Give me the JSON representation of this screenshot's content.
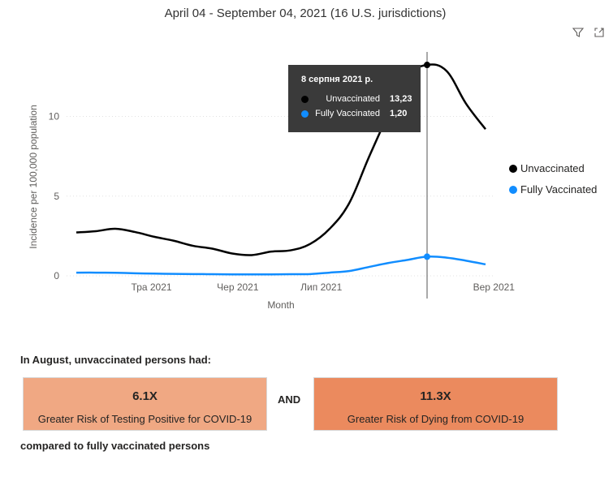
{
  "title": "April 04 - September 04, 2021 (16 U.S. jurisdictions)",
  "toolbar": {
    "filter_icon": "filter-icon",
    "focus_icon": "focus-mode-icon"
  },
  "chart_data": {
    "type": "line",
    "xlabel": "Month",
    "ylabel": "Incidence per 100,000 population",
    "ylim": [
      0,
      14
    ],
    "yticks": [
      0,
      5,
      10
    ],
    "xtick_labels": [
      "Тра 2021",
      "Чер 2021",
      "Лип 2021",
      "Вер 2021"
    ],
    "x": [
      "2021-04-04",
      "2021-04-11",
      "2021-04-18",
      "2021-04-25",
      "2021-05-02",
      "2021-05-09",
      "2021-05-16",
      "2021-05-23",
      "2021-05-30",
      "2021-06-06",
      "2021-06-13",
      "2021-06-20",
      "2021-06-27",
      "2021-07-04",
      "2021-07-11",
      "2021-07-18",
      "2021-07-25",
      "2021-08-01",
      "2021-08-08",
      "2021-08-15",
      "2021-08-22",
      "2021-08-29"
    ],
    "series": [
      {
        "name": "Unvaccinated",
        "color": "#000000",
        "values": [
          2.72,
          2.8,
          2.95,
          2.75,
          2.45,
          2.2,
          1.88,
          1.7,
          1.4,
          1.3,
          1.52,
          1.6,
          2.0,
          2.95,
          4.55,
          7.4,
          10.1,
          12.5,
          13.23,
          12.85,
          10.8,
          9.2
        ]
      },
      {
        "name": "Fully Vaccinated",
        "color": "#118DFF",
        "values": [
          0.2,
          0.2,
          0.19,
          0.16,
          0.14,
          0.12,
          0.11,
          0.1,
          0.09,
          0.09,
          0.09,
          0.1,
          0.11,
          0.2,
          0.3,
          0.55,
          0.8,
          1.0,
          1.2,
          1.14,
          0.95,
          0.72
        ]
      }
    ],
    "legend_position": "right",
    "grid": true,
    "hover_index": 18,
    "tooltip": {
      "title": "8 серпня 2021 р.",
      "rows": [
        {
          "name": "Unvaccinated",
          "value": "13,23",
          "color": "#000000"
        },
        {
          "name": "Fully Vaccinated",
          "value": "1,20",
          "color": "#118DFF"
        }
      ]
    }
  },
  "summary": {
    "heading": "In August, unvaccinated persons had:",
    "and_label": "AND",
    "footer": "compared to fully vaccinated persons",
    "cards": [
      {
        "value": "6.1X",
        "label": "Greater Risk of Testing Positive for COVID-19",
        "color": "#F0A883"
      },
      {
        "value": "11.3X",
        "label": "Greater Risk of Dying from COVID-19",
        "color": "#EB8A5E"
      }
    ]
  }
}
